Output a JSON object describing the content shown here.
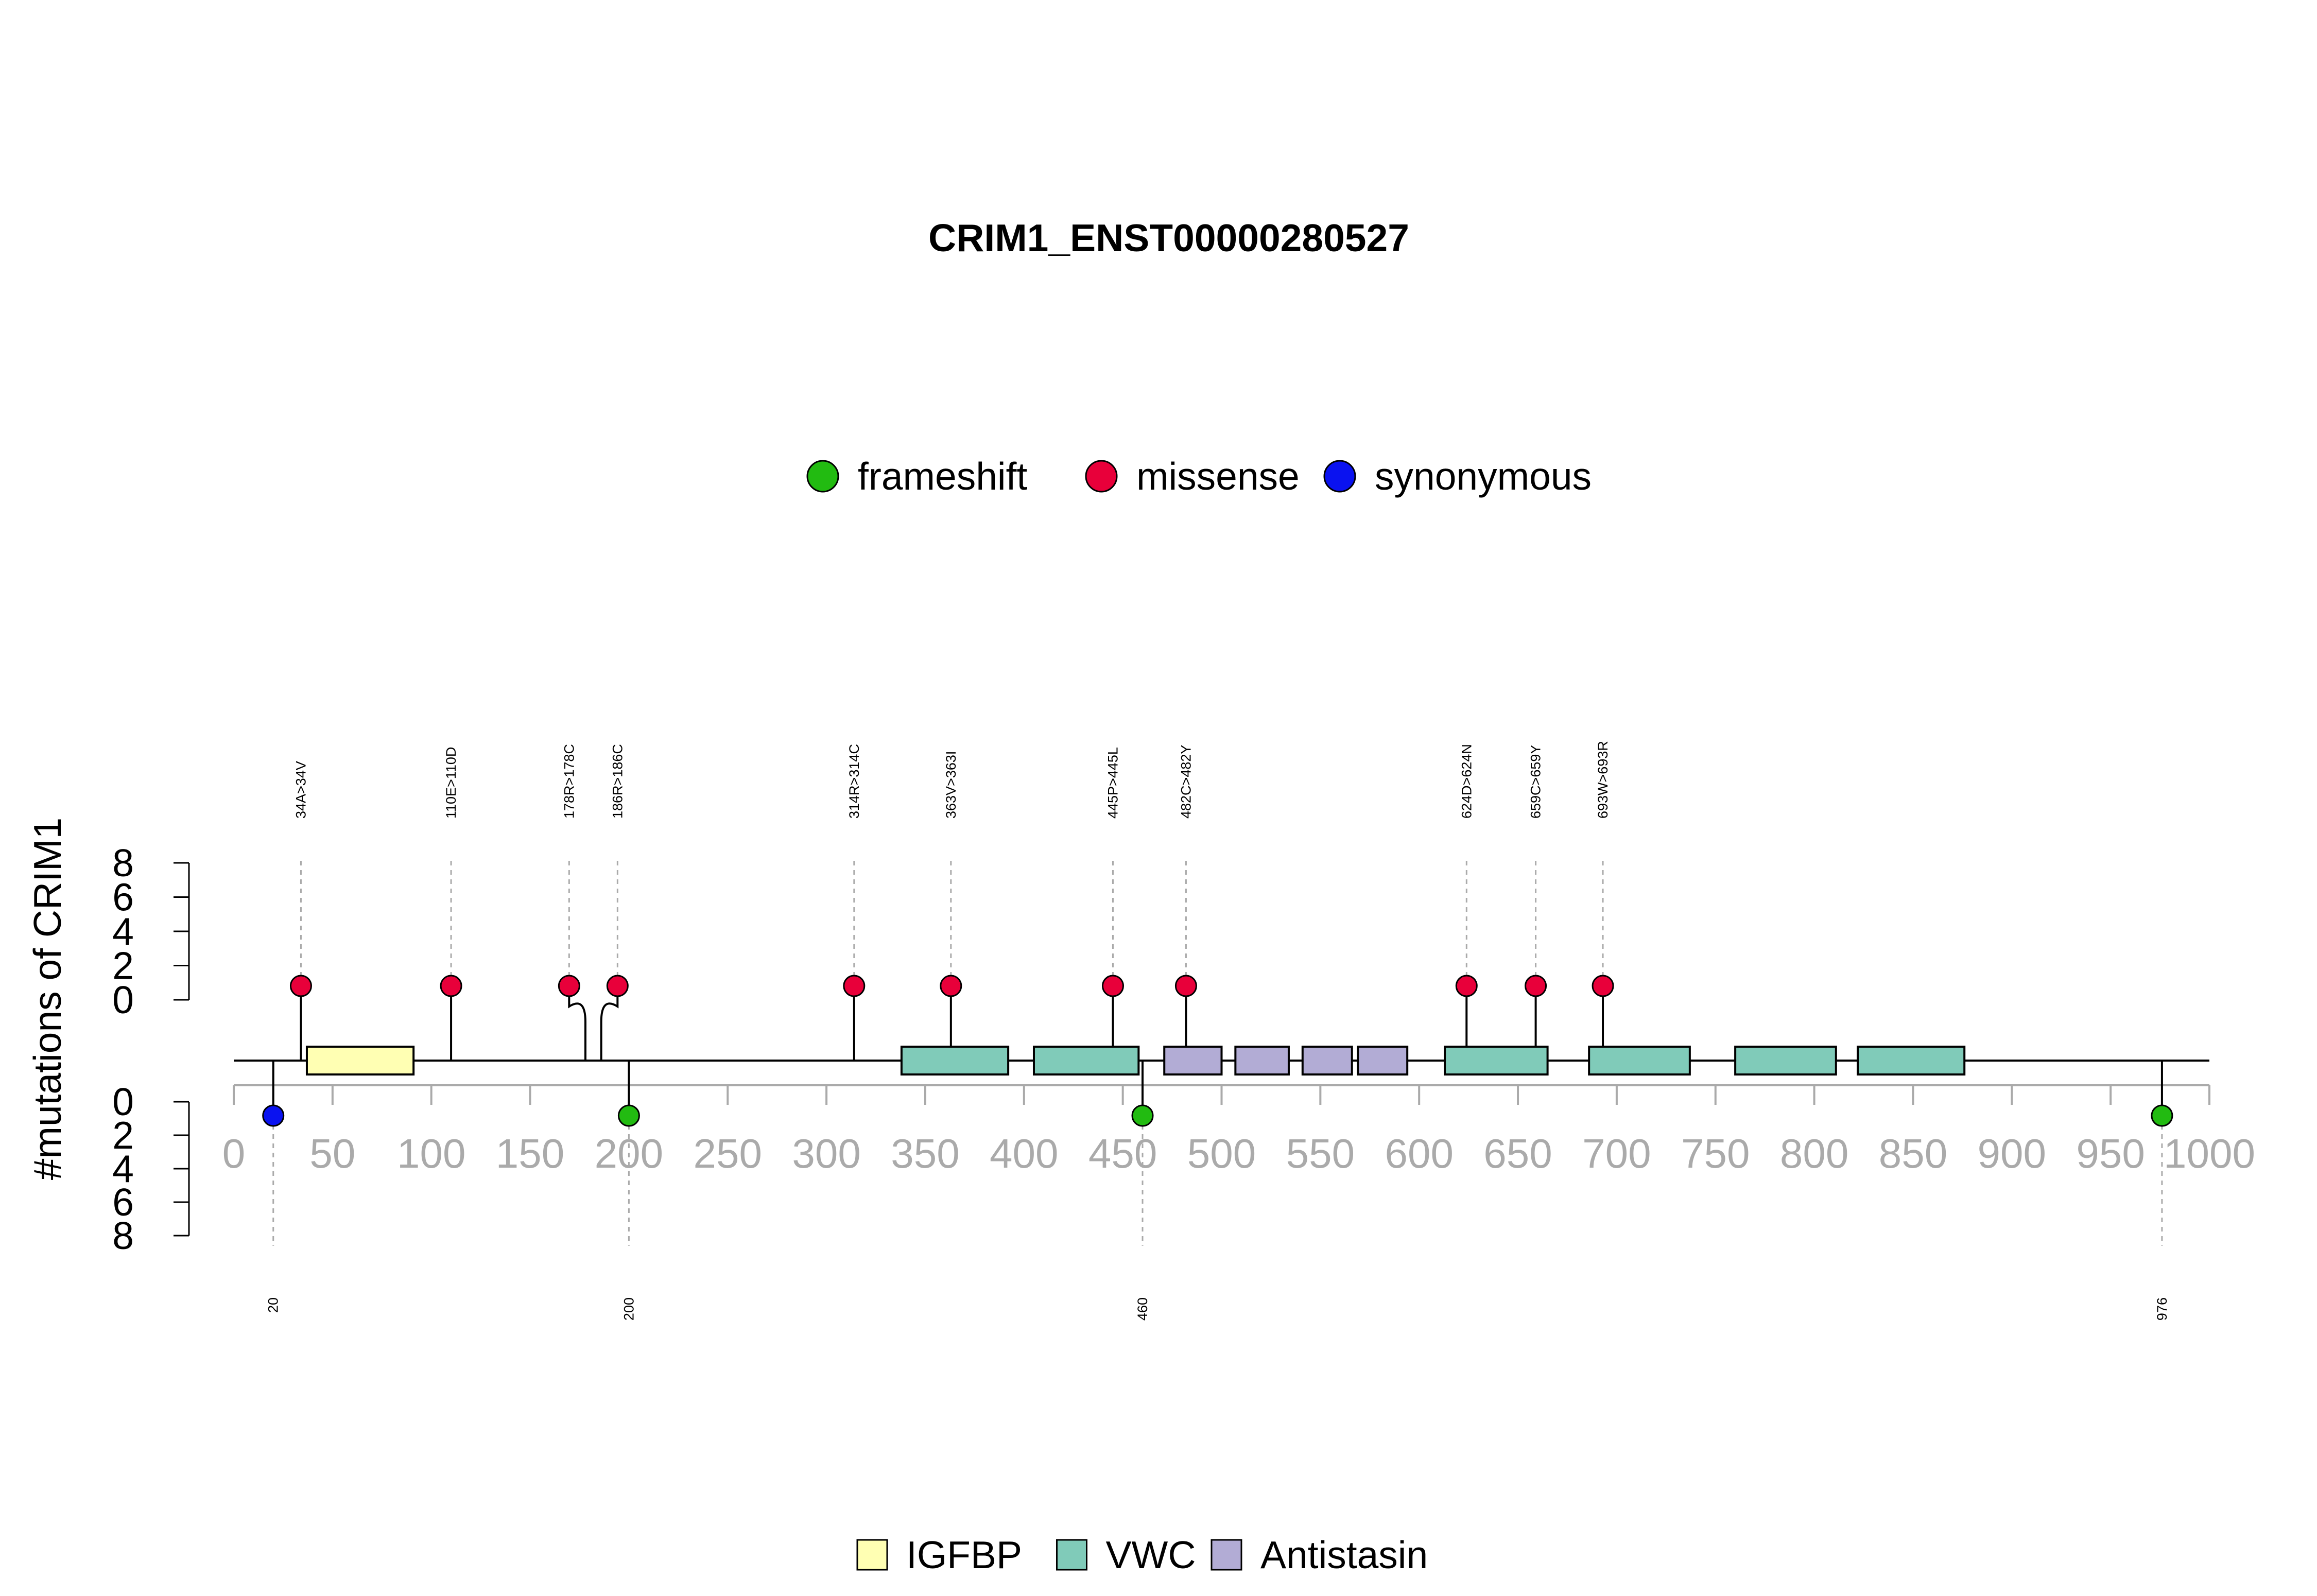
{
  "chart_data": {
    "type": "lollipop",
    "title": "CRIM1_ENST00000280527",
    "ylabel": "#mutations of CRIM1",
    "xlim": [
      0,
      1000
    ],
    "x_ticks": [
      0,
      50,
      100,
      150,
      200,
      250,
      300,
      350,
      400,
      450,
      500,
      550,
      600,
      650,
      700,
      750,
      800,
      850,
      900,
      950,
      1000
    ],
    "y_ticks": [
      0,
      2,
      4,
      6,
      8
    ],
    "ylim": [
      0,
      8
    ],
    "grid": false,
    "mutation_legend": [
      {
        "name": "frameshift",
        "color": "#22bb11"
      },
      {
        "name": "missense",
        "color": "#e8003a"
      },
      {
        "name": "synonymous",
        "color": "#0a12f0"
      }
    ],
    "domain_legend": [
      {
        "name": "IGFBP",
        "color": "#ffffb3"
      },
      {
        "name": "VWC",
        "color": "#80cbb9"
      },
      {
        "name": "Antistasin",
        "color": "#b2acd5"
      }
    ],
    "upper_mutations": [
      {
        "position": 34,
        "label": "34A>34V",
        "type": "missense",
        "count": 1
      },
      {
        "position": 110,
        "label": "110E>110D",
        "type": "missense",
        "count": 1
      },
      {
        "position": 178,
        "label": "178R>178C",
        "type": "missense",
        "count": 1
      },
      {
        "position": 186,
        "label": "186R>186C",
        "type": "missense",
        "count": 1
      },
      {
        "position": 314,
        "label": "314R>314C",
        "type": "missense",
        "count": 1
      },
      {
        "position": 363,
        "label": "363V>363I",
        "type": "missense",
        "count": 1
      },
      {
        "position": 445,
        "label": "445P>445L",
        "type": "missense",
        "count": 1
      },
      {
        "position": 482,
        "label": "482C>482Y",
        "type": "missense",
        "count": 1
      },
      {
        "position": 624,
        "label": "624D>624N",
        "type": "missense",
        "count": 1
      },
      {
        "position": 659,
        "label": "659C>659Y",
        "type": "missense",
        "count": 1
      },
      {
        "position": 693,
        "label": "693W>693R",
        "type": "missense",
        "count": 1
      }
    ],
    "lower_mutations": [
      {
        "position": 20,
        "label": "20",
        "type": "synonymous",
        "count": 1
      },
      {
        "position": 200,
        "label": "200",
        "type": "frameshift",
        "count": 1
      },
      {
        "position": 460,
        "label": "460",
        "type": "frameshift",
        "count": 1
      },
      {
        "position": 976,
        "label": "976",
        "type": "frameshift",
        "count": 1
      }
    ],
    "protein_domains": [
      {
        "name": "IGFBP",
        "start": 37,
        "end": 91
      },
      {
        "name": "VWC",
        "start": 338,
        "end": 392
      },
      {
        "name": "VWC",
        "start": 405,
        "end": 458
      },
      {
        "name": "Antistasin",
        "start": 471,
        "end": 500
      },
      {
        "name": "Antistasin",
        "start": 507,
        "end": 534
      },
      {
        "name": "Antistasin",
        "start": 541,
        "end": 566
      },
      {
        "name": "Antistasin",
        "start": 569,
        "end": 594
      },
      {
        "name": "VWC",
        "start": 613,
        "end": 665
      },
      {
        "name": "VWC",
        "start": 686,
        "end": 737
      },
      {
        "name": "VWC",
        "start": 760,
        "end": 811
      },
      {
        "name": "VWC",
        "start": 822,
        "end": 876
      }
    ],
    "protein_length": 1000
  }
}
